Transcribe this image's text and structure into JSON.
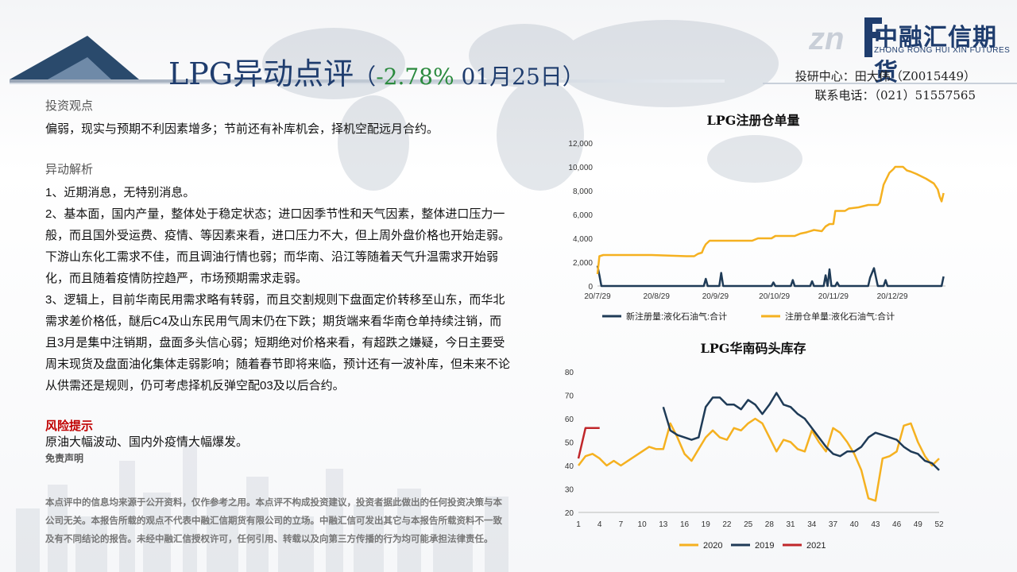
{
  "header": {
    "title_main": "LPG异动点评",
    "title_open": "（",
    "title_pct": "-2.78%",
    "title_date": " 01月25日）",
    "contact_line1": "投研中心：田大伟（Z0015449）",
    "contact_line2": "联系电话：（021）51557565"
  },
  "logo": {
    "name": "中融汇信期货",
    "en": "ZHONG RONG HUI XIN FUTURES"
  },
  "content": {
    "view_title": "投资观点",
    "view_text": "偏弱，现实与预期不利因素增多；节前还有补库机会，择机空配远月合约。",
    "analysis_title": "异动解析",
    "analysis_1": "1、近期消息，无特别消息。",
    "analysis_2": "2、基本面，国内产量，整体处于稳定状态；进口因季节性和天气因素，整体进口压力一般，而且国外受运费、疫情、等因素来看，进口压力不大，但上周外盘价格也开始走弱。下游山东化工需求不佳，而且调油行情也弱；而华南、沿江等随着天气升温需求开始弱化，而且随着疫情防控趋严，市场预期需求走弱。",
    "analysis_3": "3、逻辑上，目前华南民用需求略有转弱，而且交割规则下盘面定价转移至山东，而华北需求差价格低，醚后C4及山东民用气周末仍在下跌；期货端来看华南仓单持续注销，而且3月是集中注销期，盘面多头信心弱；短期绝对价格来看，有超跌之嫌疑，今日主要受周末现货及盘面油化集体走弱影响；随着春节即将来临，预计还有一波补库，但未来不论从供需还是规则，仍可考虑择机反弹空配03及以后合约。",
    "risk_title": "风险提示",
    "risk_text": "原油大幅波动、国内外疫情大幅爆发。",
    "disclaimer_title": "免责声明",
    "disclaimer_text": "本点评中的信息均来源于公开资料，仅作参考之用。本点评不构成投资建议，投资者据此做出的任何投资决策与本公司无关。本报告所载的观点不代表中融汇信期货有限公司的立场。中融汇信可发出其它与本报告所载资料不一致及有不同结论的报告。未经中融汇信授权许可，任何引用、转载以及向第三方传播的行为均可能承担法律责任。"
  },
  "chart_data": [
    {
      "type": "line",
      "title": "LPG注册仓单量",
      "x_ticks": [
        "20/7/29",
        "20/8/29",
        "20/9/29",
        "20/10/29",
        "20/11/29",
        "20/12/29"
      ],
      "y_ticks": [
        "0",
        "2,000",
        "4,000",
        "6,000",
        "8,000",
        "10,000",
        "12,000"
      ],
      "ylim": [
        0,
        12000
      ],
      "x_range": [
        0,
        180
      ],
      "legend": "bottom",
      "series": [
        {
          "name": "新注册量:液化石油气:合计",
          "color": "#1f3b57",
          "points": [
            [
              0,
              1700
            ],
            [
              1,
              900
            ],
            [
              2,
              0
            ],
            [
              55,
              0
            ],
            [
              56,
              600
            ],
            [
              57,
              0
            ],
            [
              63,
              0
            ],
            [
              64,
              1100
            ],
            [
              65,
              0
            ],
            [
              90,
              0
            ],
            [
              91,
              300
            ],
            [
              92,
              0
            ],
            [
              100,
              0
            ],
            [
              101,
              500
            ],
            [
              102,
              0
            ],
            [
              110,
              0
            ],
            [
              111,
              400
            ],
            [
              112,
              0
            ],
            [
              117,
              0
            ],
            [
              118,
              900
            ],
            [
              119,
              0
            ],
            [
              120,
              1400
            ],
            [
              121,
              0
            ],
            [
              123,
              0
            ],
            [
              124,
              300
            ],
            [
              125,
              0
            ],
            [
              140,
              0
            ],
            [
              141,
              700
            ],
            [
              143,
              1500
            ],
            [
              145,
              0
            ],
            [
              148,
              0
            ],
            [
              149,
              500
            ],
            [
              150,
              0
            ],
            [
              178,
              0
            ],
            [
              179,
              800
            ]
          ]
        },
        {
          "name": "注册仓单量:液化石油气:合计",
          "color": "#f5b120",
          "points": [
            [
              0,
              1000
            ],
            [
              1,
              2500
            ],
            [
              3,
              2600
            ],
            [
              20,
              2600
            ],
            [
              28,
              2600
            ],
            [
              46,
              2500
            ],
            [
              50,
              2500
            ],
            [
              52,
              2700
            ],
            [
              54,
              2800
            ],
            [
              55,
              3200
            ],
            [
              56,
              3500
            ],
            [
              58,
              3800
            ],
            [
              70,
              3800
            ],
            [
              80,
              3800
            ],
            [
              83,
              4000
            ],
            [
              90,
              4000
            ],
            [
              92,
              4200
            ],
            [
              102,
              4200
            ],
            [
              105,
              4400
            ],
            [
              108,
              4500
            ],
            [
              112,
              4700
            ],
            [
              116,
              4600
            ],
            [
              118,
              5000
            ],
            [
              120,
              5200
            ],
            [
              122,
              5200
            ],
            [
              123,
              6300
            ],
            [
              128,
              6300
            ],
            [
              130,
              6500
            ],
            [
              135,
              6600
            ],
            [
              140,
              6800
            ],
            [
              145,
              6800
            ],
            [
              146,
              7000
            ],
            [
              148,
              8500
            ],
            [
              151,
              9500
            ],
            [
              153,
              9800
            ],
            [
              154,
              10000
            ],
            [
              158,
              10000
            ],
            [
              160,
              9700
            ],
            [
              162,
              9600
            ],
            [
              165,
              9400
            ],
            [
              170,
              9000
            ],
            [
              174,
              8600
            ],
            [
              176,
              8100
            ],
            [
              177,
              7500
            ],
            [
              178,
              7100
            ],
            [
              179,
              7800
            ]
          ]
        }
      ]
    },
    {
      "type": "line",
      "title": "LPG华南码头库存",
      "x_ticks": [
        "1",
        "4",
        "7",
        "10",
        "13",
        "16",
        "19",
        "22",
        "25",
        "28",
        "31",
        "34",
        "37",
        "40",
        "43",
        "46",
        "49",
        "52"
      ],
      "y_ticks": [
        "20",
        "30",
        "40",
        "50",
        "60",
        "70",
        "80"
      ],
      "ylim": [
        20,
        80
      ],
      "x_range": [
        1,
        52
      ],
      "legend": "bottom",
      "series": [
        {
          "name": "2020",
          "color": "#f5b120",
          "points": [
            [
              1,
              40
            ],
            [
              2,
              44
            ],
            [
              3,
              45
            ],
            [
              4,
              43
            ],
            [
              5,
              40
            ],
            [
              6,
              42
            ],
            [
              7,
              40
            ],
            [
              8,
              42
            ],
            [
              9,
              44
            ],
            [
              10,
              46
            ],
            [
              11,
              48
            ],
            [
              12,
              47
            ],
            [
              13,
              47
            ],
            [
              14,
              58
            ],
            [
              15,
              52
            ],
            [
              16,
              45
            ],
            [
              17,
              42
            ],
            [
              18,
              47
            ],
            [
              19,
              52
            ],
            [
              20,
              55
            ],
            [
              21,
              52
            ],
            [
              22,
              51
            ],
            [
              23,
              56
            ],
            [
              24,
              55
            ],
            [
              25,
              58
            ],
            [
              26,
              60
            ],
            [
              27,
              58
            ],
            [
              28,
              52
            ],
            [
              29,
              46
            ],
            [
              30,
              51
            ],
            [
              31,
              50
            ],
            [
              32,
              47
            ],
            [
              33,
              46
            ],
            [
              34,
              55
            ],
            [
              35,
              50
            ],
            [
              36,
              46
            ],
            [
              37,
              56
            ],
            [
              38,
              54
            ],
            [
              39,
              50
            ],
            [
              40,
              45
            ],
            [
              41,
              38
            ],
            [
              42,
              26
            ],
            [
              43,
              25
            ],
            [
              44,
              43
            ],
            [
              45,
              44
            ],
            [
              46,
              46
            ],
            [
              47,
              57
            ],
            [
              48,
              58
            ],
            [
              49,
              50
            ],
            [
              50,
              44
            ],
            [
              51,
              40
            ],
            [
              52,
              43
            ]
          ]
        },
        {
          "name": "2019",
          "color": "#1f3b57",
          "points": [
            [
              13,
              65
            ],
            [
              14,
              55
            ],
            [
              15,
              53
            ],
            [
              16,
              52
            ],
            [
              17,
              51
            ],
            [
              18,
              52
            ],
            [
              19,
              65
            ],
            [
              20,
              69
            ],
            [
              21,
              69
            ],
            [
              22,
              66
            ],
            [
              23,
              66
            ],
            [
              24,
              64
            ],
            [
              25,
              68
            ],
            [
              26,
              66
            ],
            [
              27,
              62
            ],
            [
              28,
              66
            ],
            [
              29,
              71
            ],
            [
              30,
              66
            ],
            [
              31,
              65
            ],
            [
              32,
              62
            ],
            [
              33,
              60
            ],
            [
              34,
              56
            ],
            [
              35,
              52
            ],
            [
              36,
              48
            ],
            [
              37,
              45
            ],
            [
              38,
              44
            ],
            [
              39,
              46
            ],
            [
              40,
              46
            ],
            [
              41,
              48
            ],
            [
              42,
              52
            ],
            [
              43,
              54
            ],
            [
              44,
              53
            ],
            [
              45,
              52
            ],
            [
              46,
              51
            ],
            [
              47,
              48
            ],
            [
              48,
              46
            ],
            [
              49,
              45
            ],
            [
              50,
              42
            ],
            [
              51,
              41
            ],
            [
              52,
              38
            ]
          ]
        },
        {
          "name": "2021",
          "color": "#c0262a",
          "points": [
            [
              1,
              43
            ],
            [
              2,
              56
            ],
            [
              3,
              56
            ],
            [
              4,
              56
            ]
          ]
        }
      ]
    }
  ]
}
